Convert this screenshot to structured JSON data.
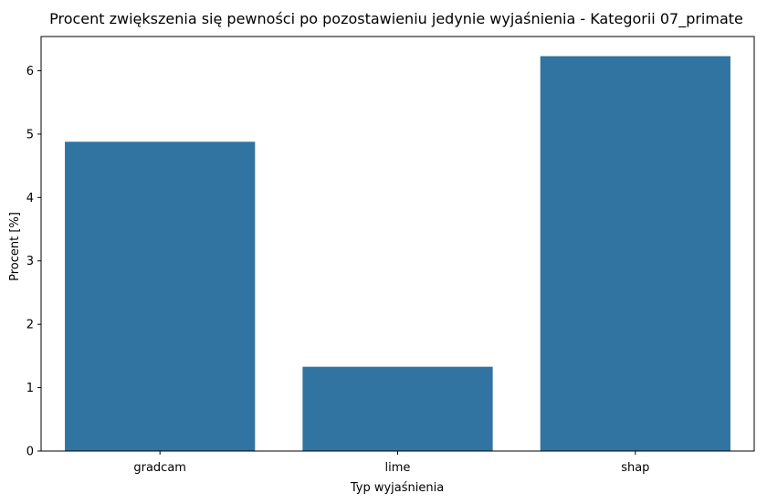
{
  "chart_data": {
    "type": "bar",
    "title": "Procent zwiększenia się pewności po pozostawieniu jedynie wyjaśnienia - Kategorii 07_primate",
    "xlabel": "Typ wyjaśnienia",
    "ylabel": "Procent [%]",
    "categories": [
      "gradcam",
      "lime",
      "shap"
    ],
    "values": [
      4.88,
      1.33,
      6.23
    ],
    "ylim": [
      0,
      6.54
    ],
    "yticks": [
      "0",
      "1",
      "2",
      "3",
      "4",
      "5",
      "6"
    ],
    "grid": false,
    "bar_color": "#3274a1"
  }
}
